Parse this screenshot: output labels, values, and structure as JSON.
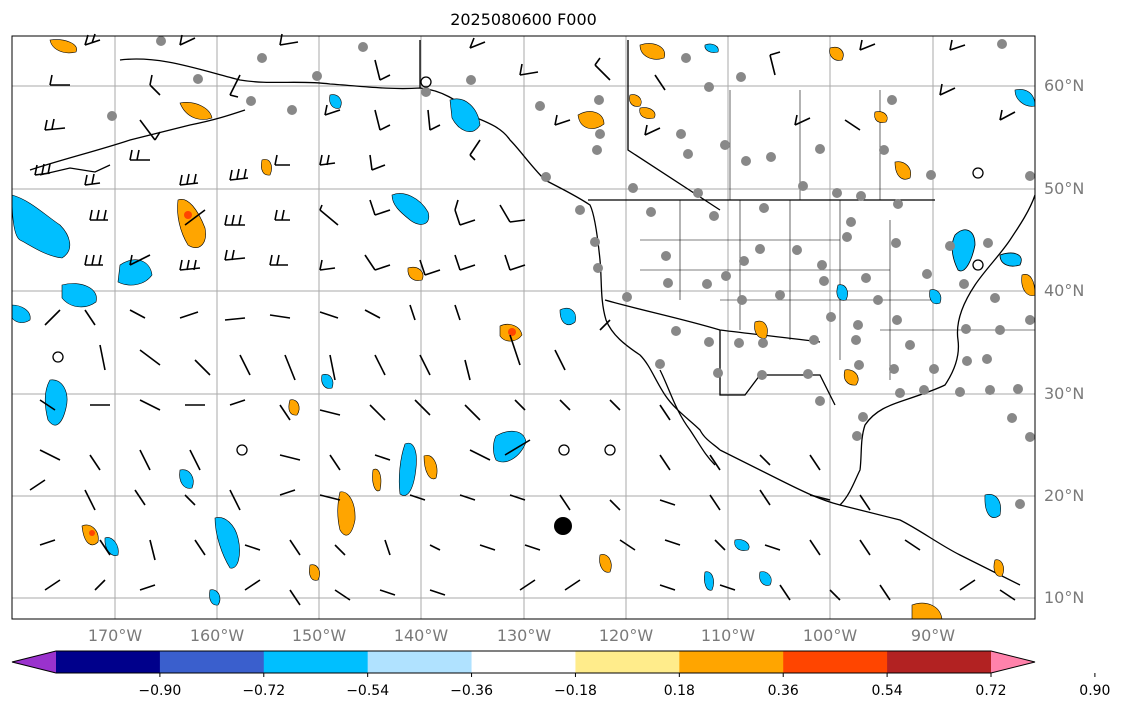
{
  "title": "2025080600 F000",
  "lat_labels": [
    "60°N",
    "50°N",
    "40°N",
    "30°N",
    "20°N",
    "10°N"
  ],
  "lon_labels": [
    "170°W",
    "160°W",
    "150°W",
    "140°W",
    "130°W",
    "120°W",
    "110°W",
    "100°W",
    "90°W"
  ],
  "colorbar": {
    "ticks": [
      "−0.90",
      "−0.72",
      "−0.54",
      "−0.36",
      "−0.18",
      "0.18",
      "0.36",
      "0.54",
      "0.72",
      "0.90"
    ],
    "colors": [
      "#9a32cd",
      "#00008b",
      "#3a5fcd",
      "#00bfff",
      "#b0e2ff",
      "#ffffff",
      "#ffec8b",
      "#ffa500",
      "#ff4500",
      "#b22222",
      "#ff82ab"
    ]
  },
  "map": {
    "lon_range": [
      -180,
      -80
    ],
    "lat_range": [
      8,
      65
    ],
    "gridlines": true,
    "land_color": "#ffffff",
    "coast_color": "#000000",
    "station_color": "#888888"
  }
}
